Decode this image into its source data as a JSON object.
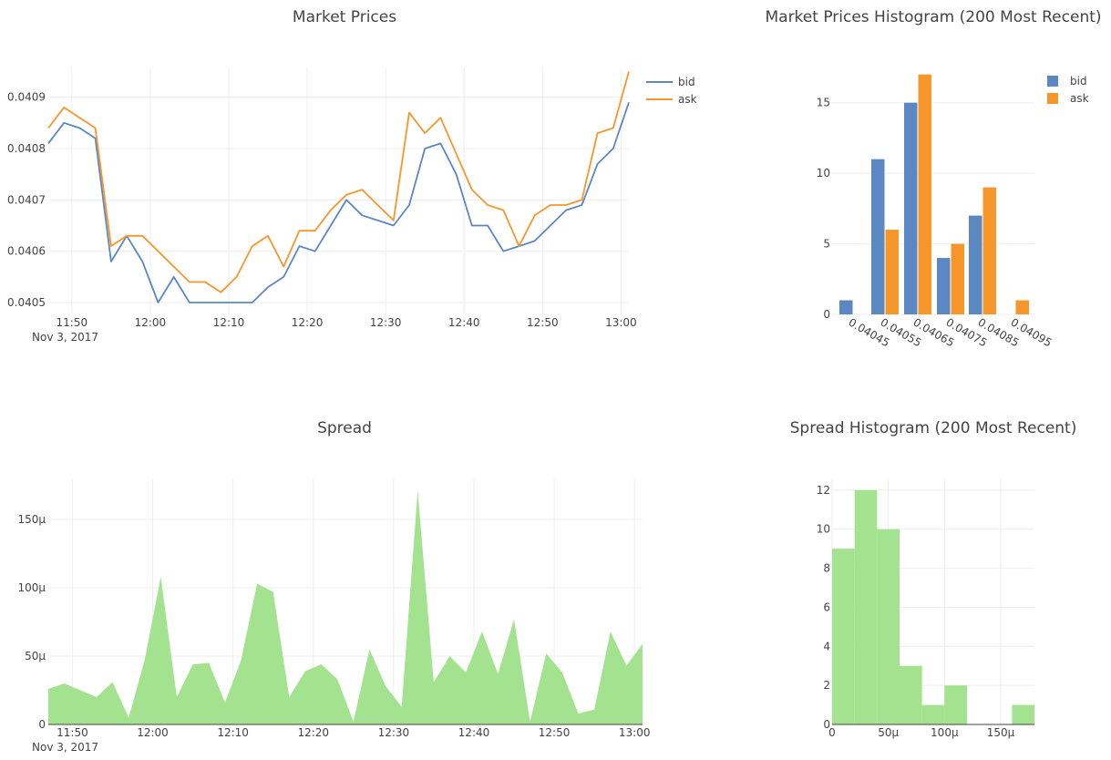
{
  "colors": {
    "bid": "#5b87c2",
    "ask": "#f7962b",
    "spread": "#a3e28f"
  },
  "chart_data": [
    {
      "id": "market-prices",
      "type": "line",
      "title": "Market Prices",
      "x_tick_labels": [
        "11:50",
        "12:00",
        "12:10",
        "12:20",
        "12:30",
        "12:40",
        "12:50",
        "13:00"
      ],
      "x_date_label": "Nov 3, 2017",
      "y_tick_labels": [
        "0.0405",
        "0.0406",
        "0.0407",
        "0.0408",
        "0.0409"
      ],
      "y_ticks": [
        0.0405,
        0.0406,
        0.0407,
        0.0408,
        0.0409
      ],
      "ylim": [
        0.04496,
        0.04096
      ],
      "series": [
        {
          "name": "bid",
          "values": [
            [
              "11:47:00",
              0.04081
            ],
            [
              "11:49:00",
              0.04085
            ],
            [
              "11:51:00",
              0.04084
            ],
            [
              "11:53:00",
              0.04082
            ],
            [
              "11:55:00",
              0.04058
            ],
            [
              "11:57:00",
              0.04063
            ],
            [
              "11:59:00",
              0.04058
            ],
            [
              "12:01:00",
              0.0405
            ],
            [
              "12:03:00",
              0.04055
            ],
            [
              "12:05:00",
              0.0405
            ],
            [
              "12:07:00",
              0.0405
            ],
            [
              "12:09:00",
              0.0405
            ],
            [
              "12:11:00",
              0.0405
            ],
            [
              "12:13:00",
              0.0405
            ],
            [
              "12:15:00",
              0.04053
            ],
            [
              "12:17:00",
              0.04055
            ],
            [
              "12:19:00",
              0.04061
            ],
            [
              "12:21:00",
              0.0406
            ],
            [
              "12:23:00",
              0.04065
            ],
            [
              "12:25:00",
              0.0407
            ],
            [
              "12:27:00",
              0.04067
            ],
            [
              "12:29:00",
              0.04066
            ],
            [
              "12:31:00",
              0.04065
            ],
            [
              "12:33:00",
              0.04069
            ],
            [
              "12:35:00",
              0.0408
            ],
            [
              "12:37:00",
              0.04081
            ],
            [
              "12:39:00",
              0.04075
            ],
            [
              "12:41:00",
              0.04065
            ],
            [
              "12:43:00",
              0.04065
            ],
            [
              "12:45:00",
              0.0406
            ],
            [
              "12:47:00",
              0.04061
            ],
            [
              "12:49:00",
              0.04062
            ],
            [
              "12:51:00",
              0.04065
            ],
            [
              "12:53:00",
              0.04068
            ],
            [
              "12:55:00",
              0.04069
            ],
            [
              "12:57:00",
              0.04077
            ],
            [
              "12:59:00",
              0.0408
            ],
            [
              "13:01:00",
              0.04089
            ]
          ]
        },
        {
          "name": "ask",
          "values": [
            [
              "11:47:00",
              0.04084
            ],
            [
              "11:49:00",
              0.04088
            ],
            [
              "11:51:00",
              0.04086
            ],
            [
              "11:53:00",
              0.04084
            ],
            [
              "11:55:00",
              0.04061
            ],
            [
              "11:57:00",
              0.04063
            ],
            [
              "11:59:00",
              0.04063
            ],
            [
              "12:01:00",
              0.0406
            ],
            [
              "12:03:00",
              0.04057
            ],
            [
              "12:05:00",
              0.04054
            ],
            [
              "12:07:00",
              0.04054
            ],
            [
              "12:09:00",
              0.04052
            ],
            [
              "12:11:00",
              0.04055
            ],
            [
              "12:13:00",
              0.04061
            ],
            [
              "12:15:00",
              0.04063
            ],
            [
              "12:17:00",
              0.04057
            ],
            [
              "12:19:00",
              0.04064
            ],
            [
              "12:21:00",
              0.04064
            ],
            [
              "12:23:00",
              0.04068
            ],
            [
              "12:25:00",
              0.04071
            ],
            [
              "12:27:00",
              0.04072
            ],
            [
              "12:29:00",
              0.04069
            ],
            [
              "12:31:00",
              0.04066
            ],
            [
              "12:33:00",
              0.04087
            ],
            [
              "12:35:00",
              0.04083
            ],
            [
              "12:37:00",
              0.04086
            ],
            [
              "12:39:00",
              0.04079
            ],
            [
              "12:41:00",
              0.04072
            ],
            [
              "12:43:00",
              0.04069
            ],
            [
              "12:45:00",
              0.04068
            ],
            [
              "12:47:00",
              0.04061
            ],
            [
              "12:49:00",
              0.04067
            ],
            [
              "12:51:00",
              0.04069
            ],
            [
              "12:53:00",
              0.04069
            ],
            [
              "12:55:00",
              0.0407
            ],
            [
              "12:57:00",
              0.04083
            ],
            [
              "12:59:00",
              0.04084
            ],
            [
              "13:01:00",
              0.04095
            ]
          ]
        }
      ],
      "legend": "top-right"
    },
    {
      "id": "market-prices-histogram",
      "type": "bar",
      "title": "Market Prices Histogram (200 Most Recent)",
      "categories": [
        "0.04045",
        "0.04055",
        "0.04065",
        "0.04075",
        "0.04085",
        "0.04095"
      ],
      "y_tick_labels": [
        "0",
        "5",
        "10",
        "15"
      ],
      "y_ticks": [
        0,
        5,
        10,
        15
      ],
      "ylim": [
        0,
        17.5
      ],
      "series": [
        {
          "name": "bid",
          "values": [
            1,
            11,
            15,
            4,
            7,
            0
          ]
        },
        {
          "name": "ask",
          "values": [
            0,
            6,
            17,
            5,
            9,
            1
          ]
        }
      ],
      "legend": "top-right"
    },
    {
      "id": "spread",
      "type": "area",
      "title": "Spread",
      "x_tick_labels": [
        "11:50",
        "12:00",
        "12:10",
        "12:20",
        "12:30",
        "12:40",
        "12:50",
        "13:00"
      ],
      "x_date_label": "Nov 3, 2017",
      "y_tick_labels": [
        "0",
        "50μ",
        "100μ",
        "150μ"
      ],
      "y_ticks": [
        0,
        5e-05,
        0.0001,
        0.00015
      ],
      "ylim": [
        0,
        0.00018
      ],
      "values": [
        [
          "11:47:00",
          2.6e-05
        ],
        [
          "11:49:00",
          3e-05
        ],
        [
          "11:51:00",
          2.5e-05
        ],
        [
          "11:53:00",
          2e-05
        ],
        [
          "11:55:00",
          3.1e-05
        ],
        [
          "11:57:00",
          5e-06
        ],
        [
          "11:59:00",
          4.7e-05
        ],
        [
          "12:01:00",
          0.000108
        ],
        [
          "12:03:00",
          2e-05
        ],
        [
          "12:05:00",
          4.4e-05
        ],
        [
          "12:07:00",
          4.5e-05
        ],
        [
          "12:09:00",
          1.6e-05
        ],
        [
          "12:11:00",
          4.7e-05
        ],
        [
          "12:13:00",
          0.000103
        ],
        [
          "12:15:00",
          9.7e-05
        ],
        [
          "12:17:00",
          2e-05
        ],
        [
          "12:19:00",
          3.9e-05
        ],
        [
          "12:21:00",
          4.4e-05
        ],
        [
          "12:23:00",
          3.3e-05
        ],
        [
          "12:25:00",
          2e-06
        ],
        [
          "12:27:00",
          5.5e-05
        ],
        [
          "12:29:00",
          2.8e-05
        ],
        [
          "12:31:00",
          1.3e-05
        ],
        [
          "12:33:00",
          0.000171
        ],
        [
          "12:35:00",
          3.1e-05
        ],
        [
          "12:37:00",
          5e-05
        ],
        [
          "12:39:00",
          3.8e-05
        ],
        [
          "12:41:00",
          6.8e-05
        ],
        [
          "12:43:00",
          3.7e-05
        ],
        [
          "12:45:00",
          7.7e-05
        ],
        [
          "12:47:00",
          2e-06
        ],
        [
          "12:49:00",
          5.2e-05
        ],
        [
          "12:51:00",
          3.8e-05
        ],
        [
          "12:53:00",
          8e-06
        ],
        [
          "12:55:00",
          1.1e-05
        ],
        [
          "12:57:00",
          6.8e-05
        ],
        [
          "12:59:00",
          4.3e-05
        ],
        [
          "13:01:00",
          5.9e-05
        ]
      ]
    },
    {
      "id": "spread-histogram",
      "type": "bar",
      "title": "Spread Histogram (200 Most Recent)",
      "bin_edges": [
        0,
        2e-05,
        4e-05,
        6e-05,
        8e-05,
        0.0001,
        0.00012,
        0.00014,
        0.00016,
        0.00018
      ],
      "values": [
        9,
        12,
        10,
        3,
        1,
        2,
        0,
        0,
        1
      ],
      "x_tick_labels": [
        "0",
        "50μ",
        "100μ",
        "150μ"
      ],
      "x_ticks": [
        0,
        5e-05,
        0.0001,
        0.00015
      ],
      "y_tick_labels": [
        "0",
        "2",
        "4",
        "6",
        "8",
        "10",
        "12"
      ],
      "y_ticks": [
        0,
        2,
        4,
        6,
        8,
        10,
        12
      ],
      "ylim": [
        0,
        12.6
      ]
    }
  ]
}
